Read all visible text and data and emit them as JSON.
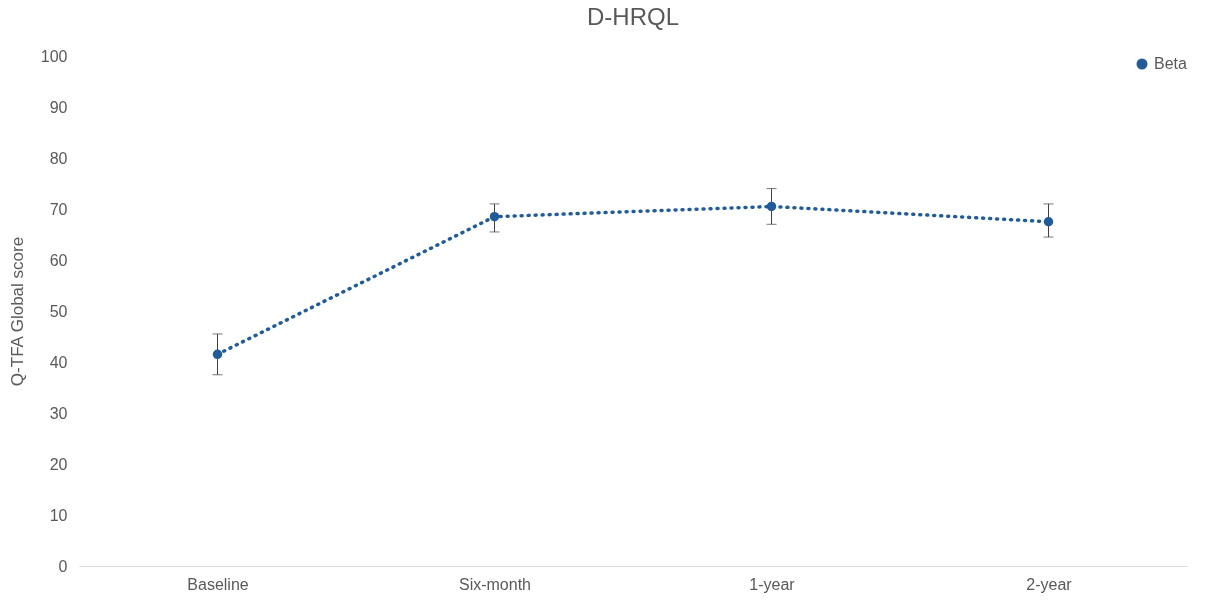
{
  "chart_data": {
    "type": "line",
    "title": "D-HRQL",
    "ylabel": "Q-TFA Global score",
    "categories": [
      "Baseline",
      "Six-month",
      "1-year",
      "2-year"
    ],
    "series": [
      {
        "name": "Beta",
        "color": "#1f5c99",
        "values": [
          41.5,
          68.5,
          70.5,
          67.5
        ],
        "errors": [
          [
            37.5,
            45.5
          ],
          [
            65.5,
            71
          ],
          [
            67,
            74
          ],
          [
            64.5,
            71
          ]
        ]
      }
    ],
    "ylim": [
      0,
      100
    ],
    "yticks": [
      0,
      10,
      20,
      30,
      40,
      50,
      60,
      70,
      80,
      90,
      100
    ],
    "grid": false,
    "legend": "top right",
    "marker": "circle",
    "line_style": "dotted"
  }
}
